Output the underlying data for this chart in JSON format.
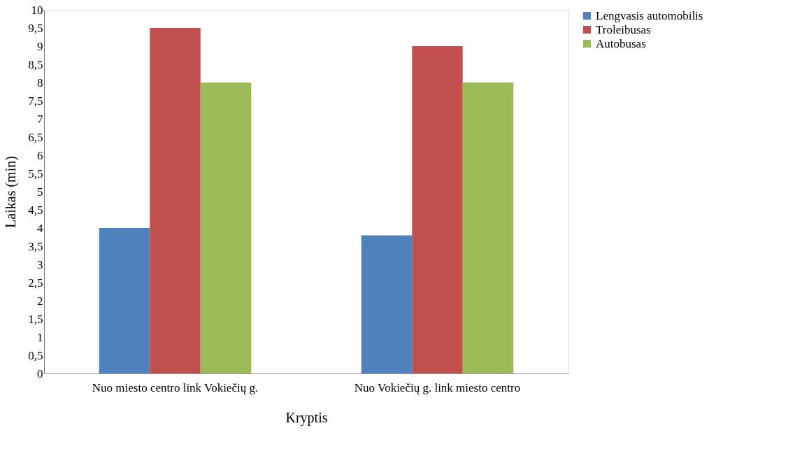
{
  "chart_data": {
    "type": "bar",
    "xlabel": "Kryptis",
    "ylabel": "Laikas (min)",
    "categories": [
      "Nuo miesto centro link Vokiečių g.",
      "Nuo Vokiečių g. link miesto centro"
    ],
    "series": [
      {
        "name": "Lengvasis automobilis",
        "color": "#4f81bd",
        "values": [
          4.0,
          3.8
        ]
      },
      {
        "name": "Troleibusas",
        "color": "#c0504d",
        "values": [
          9.5,
          9.0
        ]
      },
      {
        "name": "Autobusas",
        "color": "#9bbb59",
        "values": [
          8.0,
          8.0
        ]
      }
    ],
    "ylim": [
      0,
      10
    ],
    "yticks": [
      0,
      {
        "value": 0.5,
        "label": "0,5"
      },
      1,
      {
        "value": 1.5,
        "label": "1,5"
      },
      2,
      {
        "value": 2.5,
        "label": "2,5"
      },
      3,
      {
        "value": 3.5,
        "label": "3,5"
      },
      4,
      {
        "value": 4.5,
        "label": "4,5"
      },
      5,
      {
        "value": 5.5,
        "label": "5,5"
      },
      6,
      {
        "value": 6.5,
        "label": "6,5"
      },
      7,
      {
        "value": 7.5,
        "label": "7,5"
      },
      8,
      {
        "value": 8.5,
        "label": "8,5"
      },
      9,
      {
        "value": 9.5,
        "label": "9,5"
      },
      10
    ],
    "grid": false,
    "legend": "right"
  }
}
